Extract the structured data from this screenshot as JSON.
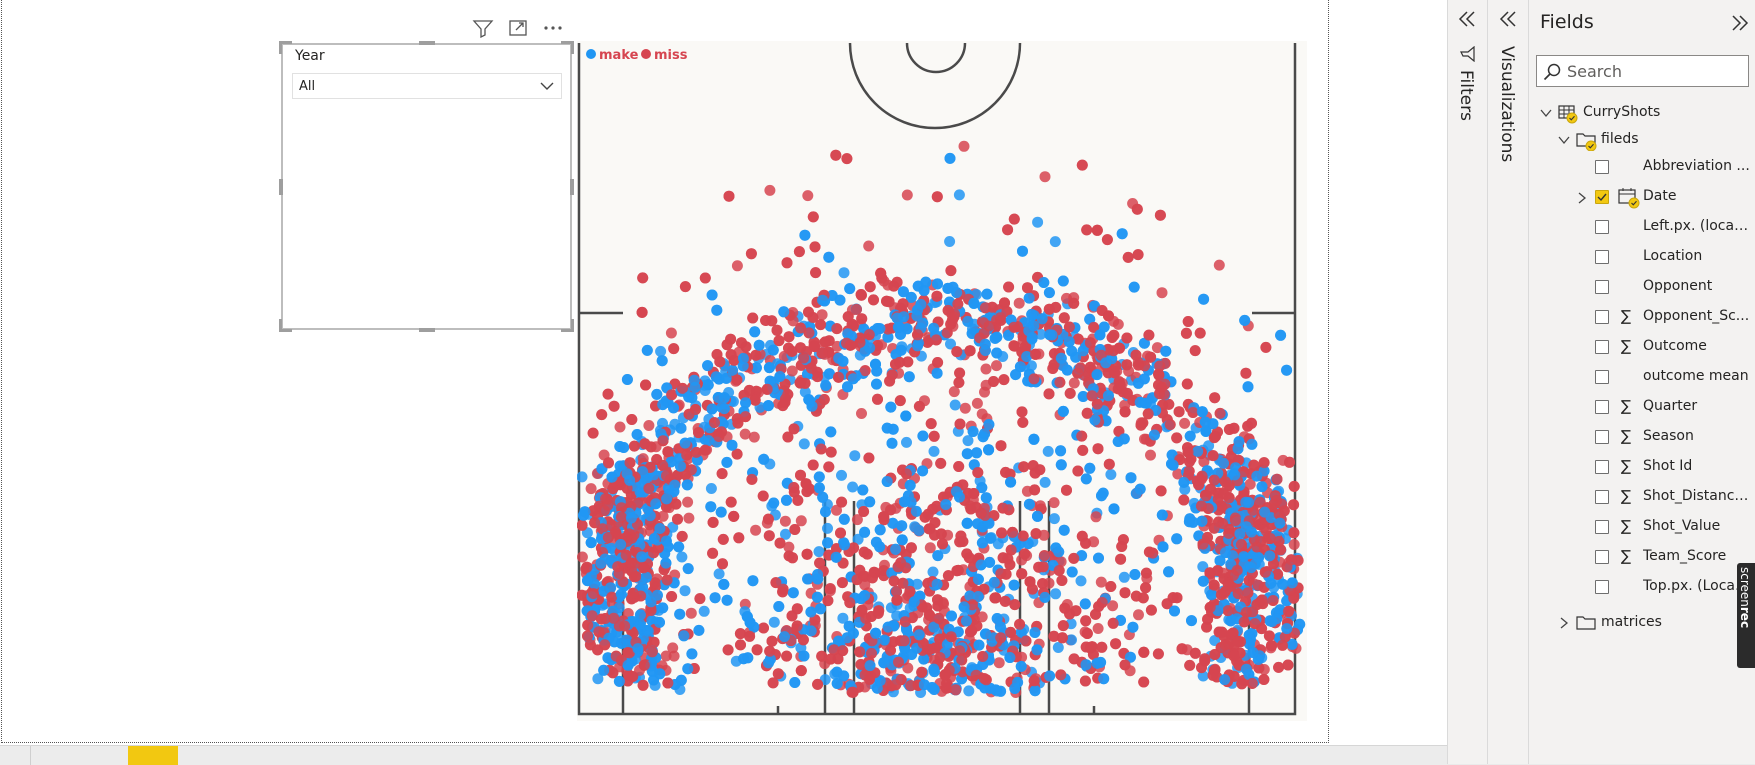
{
  "slicer": {
    "title": "Year",
    "selected": "All"
  },
  "visual_header": {
    "filter_icon": "filter-icon",
    "focus_icon": "focus-mode-icon",
    "more_icon": "more-options-icon"
  },
  "chart_data": {
    "type": "scatter",
    "title": "",
    "background": "basketball half-court",
    "legend": [
      {
        "name": "make",
        "color": "#2196f3"
      },
      {
        "name": "miss",
        "color": "#d64550"
      }
    ],
    "legend_placement": "top-left",
    "xlim": [
      -250,
      250
    ],
    "ylim": [
      -50,
      420
    ],
    "point_count_estimate": 5000,
    "seed": 7,
    "notes": "Shot chart; dense cloud of make/miss points concentrated near basket and along three-point arc."
  },
  "panes": {
    "filters_label": "Filters",
    "visualizations_label": "Visualizations"
  },
  "fields": {
    "title": "Fields",
    "search_placeholder": "Search",
    "table_name": "CurryShots",
    "folder_name": "fileds",
    "items": [
      {
        "label": "Abbreviation ...",
        "sigma": false,
        "checked": false
      },
      {
        "label": "Date",
        "sigma": false,
        "checked": true
      },
      {
        "label": "Left.px. (locati...",
        "sigma": false,
        "checked": false
      },
      {
        "label": "Location",
        "sigma": false,
        "checked": false
      },
      {
        "label": "Opponent",
        "sigma": false,
        "checked": false
      },
      {
        "label": "Opponent_Sc...",
        "sigma": true,
        "checked": false
      },
      {
        "label": "Outcome",
        "sigma": true,
        "checked": false
      },
      {
        "label": "outcome mean",
        "sigma": false,
        "checked": false
      },
      {
        "label": "Quarter",
        "sigma": true,
        "checked": false
      },
      {
        "label": "Season",
        "sigma": true,
        "checked": false
      },
      {
        "label": "Shot Id",
        "sigma": true,
        "checked": false
      },
      {
        "label": "Shot_Distance...",
        "sigma": true,
        "checked": false
      },
      {
        "label": "Shot_Value",
        "sigma": true,
        "checked": false
      },
      {
        "label": "Team_Score",
        "sigma": true,
        "checked": false
      },
      {
        "label": "Top.px. (Locati...",
        "sigma": false,
        "checked": false
      }
    ],
    "second_folder": "matrices"
  },
  "watermark": {
    "screen": "screen",
    "rec": "rec"
  },
  "colors": {
    "accent": "#f2c811",
    "make": "#2196f3",
    "miss": "#d64550"
  }
}
